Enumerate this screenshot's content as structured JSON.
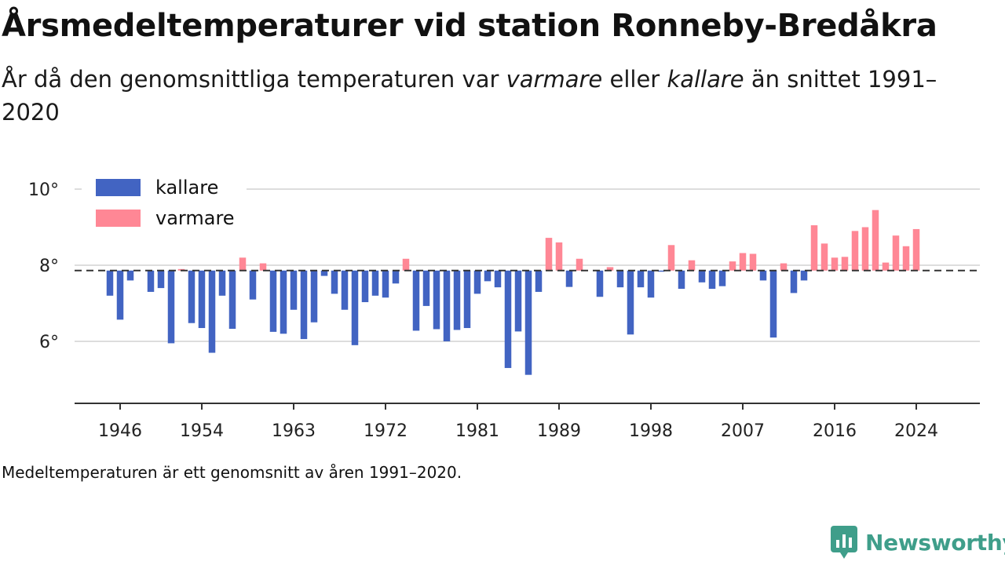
{
  "title": "Årsmedeltemperaturer vid station Ronneby-Bredåkra",
  "subtitle": {
    "part1": "År då den genomsnittliga temperaturen var ",
    "warm_word": "varmare",
    "part2": " eller ",
    "cold_word": "kallare",
    "part3": " än snittet 1991–2020"
  },
  "footnote": "Medeltemperaturen är ett genomsnitt av åren 1991–2020.",
  "brand": "Newsworthy",
  "chart_data": {
    "type": "bar",
    "baseline": 7.86,
    "baseline_style": "dashed",
    "ylim": [
      4.4,
      10.6
    ],
    "y_ticks": [
      6,
      8,
      10
    ],
    "y_tick_labels": [
      "6°",
      "8°",
      "10°"
    ],
    "x_ticks": [
      1946,
      1954,
      1963,
      1972,
      1981,
      1989,
      1998,
      2007,
      2016,
      2024
    ],
    "grid": true,
    "legend_position": "top-left",
    "colors": {
      "kallare": "#4264c2",
      "varmare": "#ff8795"
    },
    "series": [
      {
        "name": "kallare"
      },
      {
        "name": "varmare"
      }
    ],
    "x": [
      1945,
      1946,
      1947,
      1948,
      1949,
      1950,
      1951,
      1952,
      1953,
      1954,
      1955,
      1956,
      1957,
      1958,
      1959,
      1960,
      1961,
      1962,
      1963,
      1964,
      1965,
      1966,
      1967,
      1968,
      1969,
      1970,
      1971,
      1972,
      1973,
      1974,
      1975,
      1976,
      1977,
      1978,
      1979,
      1980,
      1981,
      1982,
      1983,
      1984,
      1985,
      1986,
      1987,
      1988,
      1989,
      1990,
      1991,
      1992,
      1993,
      1994,
      1995,
      1996,
      1997,
      1998,
      1999,
      2000,
      2001,
      2002,
      2003,
      2004,
      2005,
      2006,
      2007,
      2008,
      2009,
      2010,
      2011,
      2012,
      2013,
      2014,
      2015,
      2016,
      2017,
      2018,
      2019,
      2020,
      2021,
      2022,
      2023,
      2024
    ],
    "values": [
      7.2,
      6.57,
      7.6,
      null,
      7.3,
      7.4,
      5.95,
      7.9,
      6.48,
      6.35,
      5.7,
      7.2,
      6.33,
      8.2,
      7.1,
      8.05,
      6.25,
      6.2,
      6.83,
      6.06,
      6.5,
      7.72,
      7.25,
      6.83,
      5.9,
      7.03,
      7.2,
      7.15,
      7.52,
      8.17,
      6.28,
      6.93,
      6.32,
      6.0,
      6.3,
      6.35,
      7.25,
      7.58,
      7.42,
      5.3,
      6.26,
      5.12,
      7.3,
      8.72,
      8.6,
      7.43,
      8.17,
      null,
      7.17,
      7.95,
      7.42,
      6.18,
      7.42,
      7.15,
      7.83,
      8.53,
      7.38,
      8.13,
      7.55,
      7.38,
      7.45,
      8.1,
      8.32,
      8.3,
      7.6,
      6.1,
      8.05,
      7.27,
      7.6,
      9.05,
      8.57,
      8.2,
      8.22,
      8.9,
      9.0,
      9.45,
      8.07,
      8.78,
      8.5,
      8.95
    ]
  }
}
